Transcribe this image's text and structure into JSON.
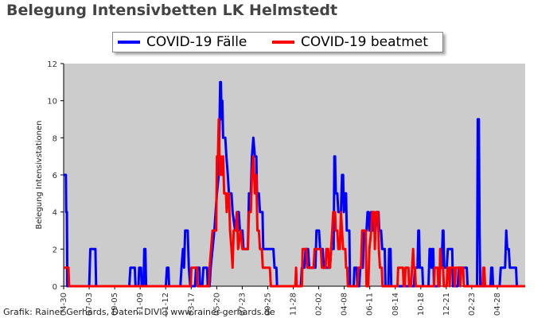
{
  "chart_data": {
    "type": "line",
    "title": "Belegung Intensivbetten LK Helmstedt",
    "ylabel": "Belegung Intensivstationen",
    "xlabel": "",
    "ylim": [
      0,
      12
    ],
    "yticks": [
      0,
      2,
      4,
      6,
      8,
      10,
      12
    ],
    "grid": false,
    "legend_position": "top",
    "background": "#cccccc",
    "x_tick_labels": [
      "04-30",
      "07-03",
      "09-05",
      "11-09",
      "01-12",
      "03-17",
      "05-20",
      "07-23",
      "09-25",
      "11-28",
      "02-02",
      "04-08",
      "06-11",
      "08-14",
      "10-18",
      "12-21",
      "02-23",
      "04-28"
    ],
    "series": [
      {
        "name": "COVID-19 Fälle",
        "color": "#0000ff",
        "points": [
          [
            0,
            6
          ],
          [
            0.6,
            6
          ],
          [
            0.7,
            4
          ],
          [
            0.9,
            4
          ],
          [
            1.0,
            0
          ],
          [
            7,
            0
          ],
          [
            7.3,
            2
          ],
          [
            8.7,
            2
          ],
          [
            8.9,
            0
          ],
          [
            18,
            0
          ],
          [
            18.3,
            1
          ],
          [
            19.5,
            1
          ],
          [
            19.7,
            0
          ],
          [
            20.5,
            0
          ],
          [
            20.7,
            1
          ],
          [
            21.2,
            1
          ],
          [
            21.4,
            0
          ],
          [
            21.9,
            0
          ],
          [
            22.1,
            2
          ],
          [
            22.4,
            2
          ],
          [
            22.6,
            0
          ],
          [
            28,
            0
          ],
          [
            28.3,
            1
          ],
          [
            28.7,
            1
          ],
          [
            28.9,
            0
          ],
          [
            32,
            0
          ],
          [
            32.3,
            1
          ],
          [
            32.7,
            2
          ],
          [
            33.0,
            1
          ],
          [
            33.3,
            3
          ],
          [
            34.0,
            3
          ],
          [
            34.3,
            1
          ],
          [
            34.7,
            0
          ],
          [
            36,
            0
          ],
          [
            36.3,
            1
          ],
          [
            37.2,
            1
          ],
          [
            37.4,
            0
          ],
          [
            38,
            0
          ],
          [
            38.3,
            1
          ],
          [
            39.3,
            1
          ],
          [
            39.5,
            0
          ],
          [
            40,
            0
          ],
          [
            40.3,
            1
          ],
          [
            40.8,
            2
          ],
          [
            41.3,
            3
          ],
          [
            42.0,
            5
          ],
          [
            42.5,
            6
          ],
          [
            42.9,
            11
          ],
          [
            43.1,
            11
          ],
          [
            43.3,
            9
          ],
          [
            43.5,
            10
          ],
          [
            43.7,
            8
          ],
          [
            44.3,
            8
          ],
          [
            44.6,
            7
          ],
          [
            45.0,
            6
          ],
          [
            45.3,
            5
          ],
          [
            46.0,
            5
          ],
          [
            46.3,
            4
          ],
          [
            47.0,
            3
          ],
          [
            47.5,
            4
          ],
          [
            48.0,
            4
          ],
          [
            48.3,
            3
          ],
          [
            49.0,
            3
          ],
          [
            49.3,
            2
          ],
          [
            50.5,
            2
          ],
          [
            50.8,
            5
          ],
          [
            51.3,
            5
          ],
          [
            51.6,
            7
          ],
          [
            52.0,
            8
          ],
          [
            52.4,
            7
          ],
          [
            52.8,
            7
          ],
          [
            53.0,
            5
          ],
          [
            53.5,
            5
          ],
          [
            53.8,
            4
          ],
          [
            54.5,
            4
          ],
          [
            54.7,
            2
          ],
          [
            57.5,
            2
          ],
          [
            57.8,
            1
          ],
          [
            58.3,
            1
          ],
          [
            58.5,
            0
          ],
          [
            65,
            0
          ],
          [
            65.3,
            1
          ],
          [
            66.0,
            1
          ],
          [
            66.3,
            2
          ],
          [
            67.0,
            2
          ],
          [
            67.3,
            1
          ],
          [
            69.0,
            1
          ],
          [
            69.3,
            3
          ],
          [
            70.0,
            3
          ],
          [
            70.3,
            2
          ],
          [
            71.0,
            2
          ],
          [
            71.3,
            1
          ],
          [
            73.0,
            1
          ],
          [
            73.3,
            2
          ],
          [
            74.0,
            2
          ],
          [
            74.2,
            7
          ],
          [
            74.4,
            7
          ],
          [
            74.6,
            5
          ],
          [
            75.0,
            5
          ],
          [
            75.3,
            4
          ],
          [
            76.0,
            4
          ],
          [
            76.3,
            6
          ],
          [
            76.6,
            6
          ],
          [
            76.8,
            4
          ],
          [
            77.1,
            5
          ],
          [
            77.4,
            5
          ],
          [
            77.6,
            3
          ],
          [
            78.3,
            3
          ],
          [
            78.5,
            0
          ],
          [
            79.5,
            0
          ],
          [
            79.7,
            1
          ],
          [
            80.3,
            1
          ],
          [
            80.5,
            0
          ],
          [
            81,
            0
          ],
          [
            81.3,
            1
          ],
          [
            82.0,
            1
          ],
          [
            82.3,
            3
          ],
          [
            83.0,
            3
          ],
          [
            83.3,
            4
          ],
          [
            83.6,
            4
          ],
          [
            83.8,
            3
          ],
          [
            84.3,
            4
          ],
          [
            84.6,
            4
          ],
          [
            84.8,
            3
          ],
          [
            85.5,
            3
          ],
          [
            85.8,
            4
          ],
          [
            86.3,
            4
          ],
          [
            86.5,
            3
          ],
          [
            87.0,
            3
          ],
          [
            87.3,
            2
          ],
          [
            88.0,
            2
          ],
          [
            88.2,
            0
          ],
          [
            89.0,
            0
          ],
          [
            89.2,
            2
          ],
          [
            89.6,
            2
          ],
          [
            89.8,
            0
          ],
          [
            96,
            0
          ],
          [
            96.3,
            1
          ],
          [
            97.0,
            1
          ],
          [
            97.2,
            3
          ],
          [
            97.4,
            3
          ],
          [
            97.6,
            1
          ],
          [
            98.3,
            1
          ],
          [
            98.5,
            0
          ],
          [
            100,
            0
          ],
          [
            100.3,
            2
          ],
          [
            100.6,
            2
          ],
          [
            100.8,
            1
          ],
          [
            101.0,
            2
          ],
          [
            101.3,
            2
          ],
          [
            101.5,
            0
          ],
          [
            103,
            0
          ],
          [
            103.3,
            2
          ],
          [
            103.6,
            1
          ],
          [
            103.9,
            3
          ],
          [
            104.1,
            3
          ],
          [
            104.3,
            1
          ],
          [
            105.0,
            1
          ],
          [
            105.3,
            2
          ],
          [
            106.5,
            2
          ],
          [
            106.7,
            0
          ],
          [
            108,
            0
          ],
          [
            108.3,
            1
          ],
          [
            110.5,
            1
          ],
          [
            110.7,
            0
          ],
          [
            113.3,
            0
          ],
          [
            113.5,
            9
          ],
          [
            113.8,
            9
          ],
          [
            114.0,
            3
          ],
          [
            114.2,
            0
          ],
          [
            117,
            0
          ],
          [
            117.2,
            1
          ],
          [
            117.5,
            1
          ],
          [
            117.7,
            0
          ],
          [
            119.5,
            0
          ],
          [
            119.8,
            1
          ],
          [
            121.0,
            1
          ],
          [
            121.3,
            3
          ],
          [
            121.6,
            2
          ],
          [
            122.0,
            2
          ],
          [
            122.3,
            1
          ],
          [
            124.0,
            1
          ],
          [
            124.2,
            0
          ],
          [
            126.5,
            0
          ]
        ]
      },
      {
        "name": "COVID-19 beatmet",
        "color": "#ff0000",
        "points": [
          [
            0,
            1
          ],
          [
            1.3,
            1
          ],
          [
            1.5,
            0
          ],
          [
            34.8,
            0
          ],
          [
            35.0,
            1
          ],
          [
            36.5,
            1
          ],
          [
            36.7,
            0
          ],
          [
            39.8,
            0
          ],
          [
            40.0,
            1
          ],
          [
            40.8,
            3
          ],
          [
            41.8,
            3
          ],
          [
            42.0,
            7
          ],
          [
            42.3,
            7
          ],
          [
            42.5,
            9
          ],
          [
            42.8,
            6
          ],
          [
            43.1,
            7
          ],
          [
            43.4,
            6
          ],
          [
            43.7,
            7
          ],
          [
            44.0,
            5
          ],
          [
            44.5,
            5
          ],
          [
            44.7,
            4
          ],
          [
            45.0,
            5
          ],
          [
            45.3,
            5
          ],
          [
            45.6,
            3
          ],
          [
            46.0,
            2
          ],
          [
            46.3,
            1
          ],
          [
            46.6,
            3
          ],
          [
            47.2,
            3
          ],
          [
            47.5,
            4
          ],
          [
            47.8,
            2
          ],
          [
            48.5,
            3
          ],
          [
            49.0,
            2
          ],
          [
            50.5,
            2
          ],
          [
            50.8,
            4
          ],
          [
            51.3,
            4
          ],
          [
            51.6,
            6
          ],
          [
            52.0,
            7
          ],
          [
            52.4,
            5
          ],
          [
            52.8,
            6
          ],
          [
            53.1,
            3
          ],
          [
            53.5,
            3
          ],
          [
            53.8,
            2
          ],
          [
            54.3,
            2
          ],
          [
            54.6,
            1
          ],
          [
            56.5,
            1
          ],
          [
            56.8,
            0
          ],
          [
            63.5,
            0
          ],
          [
            63.7,
            1
          ],
          [
            63.9,
            0
          ],
          [
            65.3,
            0
          ],
          [
            65.5,
            2
          ],
          [
            66.5,
            2
          ],
          [
            66.8,
            1
          ],
          [
            68.5,
            1
          ],
          [
            68.8,
            2
          ],
          [
            70.5,
            2
          ],
          [
            70.8,
            1
          ],
          [
            71.8,
            1
          ],
          [
            72.0,
            2
          ],
          [
            72.5,
            2
          ],
          [
            72.7,
            1
          ],
          [
            73.0,
            1
          ],
          [
            73.3,
            2
          ],
          [
            73.6,
            3
          ],
          [
            73.9,
            4
          ],
          [
            74.4,
            4
          ],
          [
            74.6,
            3
          ],
          [
            75.0,
            3
          ],
          [
            75.3,
            2
          ],
          [
            75.7,
            2
          ],
          [
            76.0,
            4
          ],
          [
            76.3,
            3
          ],
          [
            76.6,
            2
          ],
          [
            77.2,
            2
          ],
          [
            77.4,
            1
          ],
          [
            77.7,
            1
          ],
          [
            77.9,
            0
          ],
          [
            80.5,
            0
          ],
          [
            80.8,
            1
          ],
          [
            81.5,
            1
          ],
          [
            81.8,
            3
          ],
          [
            82.8,
            3
          ],
          [
            83.0,
            0
          ],
          [
            83.5,
            0
          ],
          [
            83.8,
            2
          ],
          [
            84.3,
            3
          ],
          [
            84.6,
            4
          ],
          [
            85.1,
            4
          ],
          [
            85.3,
            2
          ],
          [
            85.6,
            4
          ],
          [
            86.2,
            4
          ],
          [
            86.4,
            2
          ],
          [
            86.7,
            1
          ],
          [
            87.2,
            1
          ],
          [
            87.4,
            0
          ],
          [
            91.5,
            0
          ],
          [
            91.7,
            1
          ],
          [
            93.0,
            1
          ],
          [
            93.2,
            0
          ],
          [
            93.5,
            0
          ],
          [
            93.7,
            1
          ],
          [
            94.5,
            1
          ],
          [
            94.7,
            0
          ],
          [
            95.2,
            0
          ],
          [
            95.5,
            1
          ],
          [
            95.8,
            2
          ],
          [
            96.0,
            1
          ],
          [
            96.3,
            1
          ],
          [
            96.5,
            0
          ],
          [
            101.5,
            0
          ],
          [
            101.7,
            1
          ],
          [
            102.5,
            1
          ],
          [
            102.7,
            0
          ],
          [
            103.0,
            0
          ],
          [
            103.2,
            2
          ],
          [
            103.5,
            1
          ],
          [
            104.0,
            1
          ],
          [
            104.2,
            0
          ],
          [
            105.0,
            0
          ],
          [
            105.2,
            1
          ],
          [
            105.6,
            1
          ],
          [
            105.8,
            0
          ],
          [
            106.0,
            1
          ],
          [
            107.0,
            1
          ],
          [
            107.2,
            0
          ],
          [
            107.5,
            1
          ],
          [
            108.5,
            1
          ],
          [
            108.7,
            0
          ],
          [
            109.0,
            1
          ],
          [
            109.5,
            1
          ],
          [
            109.7,
            0
          ],
          [
            114.8,
            0
          ],
          [
            115.0,
            1
          ],
          [
            115.3,
            1
          ],
          [
            115.5,
            0
          ],
          [
            126.5,
            0
          ]
        ]
      }
    ]
  },
  "credit": "Grafik: Rainer Gerhards, Daten: DIVI | www.rainer-gerhards.de"
}
